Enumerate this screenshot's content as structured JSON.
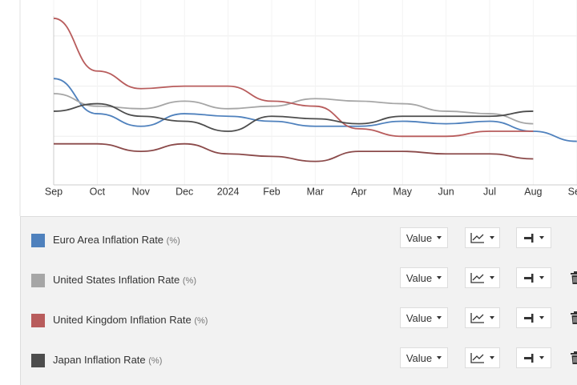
{
  "chart_data": {
    "type": "line",
    "categories": [
      "Sep",
      "Oct",
      "Nov",
      "Dec",
      "2024",
      "Feb",
      "Mar",
      "Apr",
      "May",
      "Jun",
      "Jul",
      "Aug",
      "Sep"
    ],
    "ylim": [
      0,
      7.4
    ],
    "yticks": [
      2,
      4,
      6
    ],
    "grid": true,
    "series": [
      {
        "name": "Euro Area Inflation Rate",
        "color": "#4f81bd",
        "values": [
          4.3,
          2.9,
          2.4,
          2.9,
          2.8,
          2.6,
          2.4,
          2.4,
          2.6,
          2.5,
          2.6,
          2.2,
          1.8
        ]
      },
      {
        "name": "United States Inflation Rate",
        "color": "#a6a6a6",
        "values": [
          3.7,
          3.2,
          3.1,
          3.4,
          3.1,
          3.2,
          3.5,
          3.4,
          3.3,
          3.0,
          2.9,
          2.5,
          null
        ]
      },
      {
        "name": "United Kingdom Inflation Rate",
        "color": "#b85c5c",
        "values": [
          6.7,
          4.6,
          3.9,
          4.0,
          4.0,
          3.4,
          3.2,
          2.3,
          2.0,
          2.0,
          2.2,
          2.2,
          null
        ]
      },
      {
        "name": "Japan Inflation Rate",
        "color": "#4d4d4d",
        "values": [
          3.0,
          3.3,
          2.8,
          2.6,
          2.2,
          2.8,
          2.7,
          2.5,
          2.8,
          2.8,
          2.8,
          3.0,
          null
        ]
      },
      {
        "color": "#8b4a4a",
        "values": [
          1.7,
          1.7,
          1.4,
          1.7,
          1.3,
          1.2,
          1.0,
          1.4,
          1.4,
          1.3,
          1.3,
          1.1,
          null
        ]
      }
    ]
  },
  "series_unit": "(%)",
  "value_button": "Value"
}
